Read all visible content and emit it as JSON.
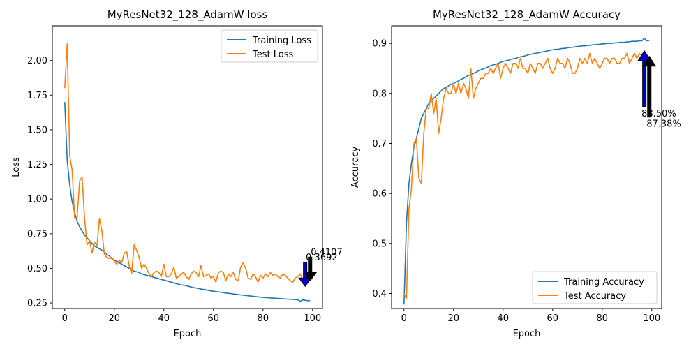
{
  "chart_data": [
    {
      "type": "line",
      "title": "MyResNet32_128_AdamW loss",
      "xlabel": "Epoch",
      "ylabel": "Loss",
      "xlim": [
        -5,
        104
      ],
      "ylim": [
        0.21,
        2.25
      ],
      "xticks": [
        0,
        20,
        40,
        60,
        80,
        100
      ],
      "yticks": [
        0.25,
        0.5,
        0.75,
        1.0,
        1.25,
        1.5,
        1.75,
        2.0
      ],
      "ytick_labels": [
        "0.25",
        "0.50",
        "0.75",
        "1.00",
        "1.25",
        "1.50",
        "1.75",
        "2.00"
      ],
      "legend_position": "upper-right",
      "series": [
        {
          "name": "Training Loss",
          "color": "#1f77b4",
          "values": [
            1.7,
            1.28,
            1.1,
            0.98,
            0.9,
            0.84,
            0.8,
            0.77,
            0.74,
            0.72,
            0.7,
            0.68,
            0.66,
            0.65,
            0.64,
            0.63,
            0.62,
            0.6,
            0.59,
            0.57,
            0.56,
            0.55,
            0.54,
            0.53,
            0.52,
            0.51,
            0.5,
            0.49,
            0.48,
            0.475,
            0.47,
            0.46,
            0.455,
            0.45,
            0.445,
            0.44,
            0.435,
            0.43,
            0.425,
            0.42,
            0.415,
            0.41,
            0.405,
            0.4,
            0.395,
            0.39,
            0.385,
            0.38,
            0.378,
            0.375,
            0.37,
            0.365,
            0.36,
            0.358,
            0.355,
            0.35,
            0.348,
            0.345,
            0.34,
            0.338,
            0.335,
            0.332,
            0.33,
            0.328,
            0.325,
            0.322,
            0.32,
            0.318,
            0.315,
            0.313,
            0.31,
            0.308,
            0.306,
            0.304,
            0.302,
            0.3,
            0.298,
            0.296,
            0.294,
            0.292,
            0.29,
            0.289,
            0.288,
            0.286,
            0.285,
            0.284,
            0.283,
            0.282,
            0.28,
            0.279,
            0.278,
            0.277,
            0.276,
            0.275,
            0.274,
            0.262,
            0.272,
            0.27,
            0.266,
            0.268
          ]
        },
        {
          "name": "Test Loss",
          "color": "#ff7f0e",
          "values": [
            1.8,
            2.12,
            1.31,
            1.21,
            0.86,
            0.87,
            1.13,
            1.16,
            0.86,
            0.67,
            0.7,
            0.61,
            0.69,
            0.66,
            0.86,
            0.77,
            0.6,
            0.58,
            0.57,
            0.58,
            0.55,
            0.53,
            0.56,
            0.54,
            0.61,
            0.62,
            0.52,
            0.46,
            0.67,
            0.63,
            0.58,
            0.5,
            0.53,
            0.5,
            0.46,
            0.44,
            0.47,
            0.48,
            0.47,
            0.44,
            0.53,
            0.44,
            0.44,
            0.46,
            0.51,
            0.43,
            0.44,
            0.46,
            0.47,
            0.44,
            0.42,
            0.46,
            0.48,
            0.47,
            0.44,
            0.52,
            0.44,
            0.45,
            0.46,
            0.43,
            0.44,
            0.4,
            0.47,
            0.48,
            0.47,
            0.41,
            0.46,
            0.44,
            0.47,
            0.42,
            0.41,
            0.51,
            0.54,
            0.5,
            0.43,
            0.42,
            0.46,
            0.44,
            0.4,
            0.45,
            0.43,
            0.46,
            0.44,
            0.47,
            0.45,
            0.46,
            0.44,
            0.43,
            0.46,
            0.45,
            0.43,
            0.41,
            0.4,
            0.43,
            0.44,
            0.46,
            0.42,
            0.4,
            0.43,
            0.41
          ]
        }
      ],
      "annotations": [
        {
          "text": "0.4107",
          "x": 99,
          "y": 0.41,
          "arrow_color": "#000000",
          "direction": "down"
        },
        {
          "text": "0.3692",
          "x": 97,
          "y": 0.37,
          "arrow_color": "#0000cc",
          "direction": "down"
        }
      ]
    },
    {
      "type": "line",
      "title": "MyResNet32_128_AdamW Accuracy",
      "xlabel": "Epoch",
      "ylabel": "Accuracy",
      "xlim": [
        -5,
        104
      ],
      "ylim": [
        0.37,
        0.935
      ],
      "xticks": [
        0,
        20,
        40,
        60,
        80,
        100
      ],
      "yticks": [
        0.4,
        0.5,
        0.6,
        0.7,
        0.8,
        0.9
      ],
      "ytick_labels": [
        "0.4",
        "0.5",
        "0.6",
        "0.7",
        "0.8",
        "0.9"
      ],
      "legend_position": "lower-right",
      "series": [
        {
          "name": "Training Accuracy",
          "color": "#1f77b4",
          "values": [
            0.378,
            0.54,
            0.62,
            0.66,
            0.69,
            0.71,
            0.73,
            0.75,
            0.76,
            0.77,
            0.78,
            0.785,
            0.79,
            0.795,
            0.8,
            0.805,
            0.81,
            0.812,
            0.815,
            0.818,
            0.82,
            0.822,
            0.825,
            0.828,
            0.83,
            0.833,
            0.836,
            0.838,
            0.84,
            0.842,
            0.845,
            0.847,
            0.849,
            0.851,
            0.853,
            0.855,
            0.857,
            0.858,
            0.86,
            0.862,
            0.864,
            0.865,
            0.866,
            0.868,
            0.869,
            0.87,
            0.872,
            0.873,
            0.874,
            0.875,
            0.877,
            0.878,
            0.879,
            0.88,
            0.881,
            0.882,
            0.883,
            0.884,
            0.885,
            0.886,
            0.887,
            0.888,
            0.888,
            0.889,
            0.89,
            0.89,
            0.891,
            0.892,
            0.892,
            0.893,
            0.894,
            0.894,
            0.895,
            0.895,
            0.896,
            0.896,
            0.897,
            0.897,
            0.898,
            0.898,
            0.899,
            0.899,
            0.9,
            0.9,
            0.9,
            0.901,
            0.901,
            0.902,
            0.902,
            0.902,
            0.903,
            0.903,
            0.904,
            0.904,
            0.904,
            0.905,
            0.905,
            0.91,
            0.905,
            0.906
          ]
        },
        {
          "name": "Test Accuracy",
          "color": "#ff7f0e",
          "values": [
            0.4,
            0.39,
            0.57,
            0.61,
            0.7,
            0.71,
            0.63,
            0.62,
            0.72,
            0.77,
            0.77,
            0.8,
            0.76,
            0.79,
            0.72,
            0.75,
            0.79,
            0.81,
            0.8,
            0.8,
            0.82,
            0.8,
            0.82,
            0.8,
            0.82,
            0.81,
            0.79,
            0.85,
            0.79,
            0.81,
            0.82,
            0.83,
            0.83,
            0.84,
            0.84,
            0.85,
            0.84,
            0.85,
            0.86,
            0.83,
            0.85,
            0.86,
            0.85,
            0.84,
            0.86,
            0.86,
            0.85,
            0.87,
            0.85,
            0.85,
            0.84,
            0.86,
            0.85,
            0.84,
            0.86,
            0.86,
            0.85,
            0.86,
            0.87,
            0.85,
            0.84,
            0.85,
            0.87,
            0.86,
            0.86,
            0.85,
            0.87,
            0.86,
            0.84,
            0.84,
            0.85,
            0.87,
            0.86,
            0.87,
            0.86,
            0.88,
            0.86,
            0.87,
            0.86,
            0.85,
            0.86,
            0.87,
            0.87,
            0.86,
            0.87,
            0.87,
            0.86,
            0.86,
            0.87,
            0.87,
            0.88,
            0.86,
            0.87,
            0.88,
            0.87,
            0.88,
            0.875,
            0.88,
            0.87,
            0.874
          ]
        }
      ],
      "annotations": [
        {
          "text": "88.50%",
          "x": 97,
          "y": 0.885,
          "arrow_color": "#0000cc",
          "direction": "up"
        },
        {
          "text": "87.38%",
          "x": 99,
          "y": 0.874,
          "arrow_color": "#000000",
          "direction": "up"
        }
      ]
    }
  ]
}
